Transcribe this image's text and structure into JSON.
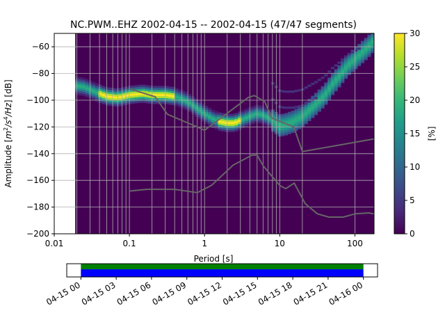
{
  "chart_data": {
    "type": "heatmap",
    "title": "NC.PWM..EHZ   2002-04-15 -- 2002-04-15  (47/47 segments)",
    "xlabel": "Period [s]",
    "ylabel_main": "Amplitude [",
    "ylabel_unit": "m",
    "ylabel_sup1": "2",
    "ylabel_mid": "/s",
    "ylabel_sup2": "4",
    "ylabel_tail": "/Hz",
    "ylabel_end": "] [dB]",
    "x_scale": "log",
    "xlim": [
      0.01,
      180
    ],
    "ylim": [
      -200,
      -50
    ],
    "grid": true,
    "x_ticks": [
      {
        "value": 0.01,
        "label": "0.01"
      },
      {
        "value": 0.1,
        "label": "0.1"
      },
      {
        "value": 1,
        "label": "1"
      },
      {
        "value": 10,
        "label": "10"
      },
      {
        "value": 100,
        "label": "100"
      }
    ],
    "y_ticks": [
      {
        "value": -60,
        "label": "−60"
      },
      {
        "value": -80,
        "label": "−80"
      },
      {
        "value": -100,
        "label": "−100"
      },
      {
        "value": -120,
        "label": "−120"
      },
      {
        "value": -140,
        "label": "−140"
      },
      {
        "value": -160,
        "label": "−160"
      },
      {
        "value": -180,
        "label": "−180"
      },
      {
        "value": -200,
        "label": "−200"
      }
    ],
    "data_extent_period": [
      0.019,
      180
    ],
    "background_color": "#440154",
    "ppsd_mode_curve": {
      "period": [
        0.019,
        0.025,
        0.03,
        0.04,
        0.05,
        0.07,
        0.1,
        0.15,
        0.2,
        0.3,
        0.4,
        0.6,
        0.8,
        1,
        1.3,
        1.6,
        2,
        2.5,
        3,
        4,
        5,
        6,
        7,
        8,
        9,
        10,
        12,
        15,
        20,
        25,
        30,
        40,
        50,
        60,
        70,
        80,
        100,
        120,
        150,
        180
      ],
      "db": [
        -89,
        -90,
        -92,
        -95,
        -97,
        -98,
        -96,
        -95,
        -96,
        -96,
        -97,
        -101,
        -106,
        -110,
        -114,
        -116,
        -117,
        -117,
        -115,
        -112,
        -110,
        -111,
        -113,
        -115,
        -117,
        -119,
        -118,
        -116,
        -112,
        -107,
        -103,
        -96,
        -88,
        -83,
        -78,
        -74,
        -69,
        -65,
        -60,
        -55
      ],
      "spread_db": 3
    },
    "colorbar": {
      "label": "[%]",
      "min": 0,
      "max": 30,
      "ticks": [
        {
          "value": 0,
          "label": "0"
        },
        {
          "value": 5,
          "label": "5"
        },
        {
          "value": 10,
          "label": "10"
        },
        {
          "value": 15,
          "label": "15"
        },
        {
          "value": 20,
          "label": "20"
        },
        {
          "value": 25,
          "label": "25"
        },
        {
          "value": 30,
          "label": "30"
        }
      ],
      "colormap": "viridis",
      "colors": [
        "#440154",
        "#482878",
        "#3e4989",
        "#31688e",
        "#26828e",
        "#1f9e89",
        "#35b779",
        "#6ece58",
        "#b5de2b",
        "#fde725"
      ]
    },
    "noise_models": {
      "color": "#666666",
      "high": {
        "period": [
          0.1,
          0.22,
          0.32,
          0.8,
          1,
          3.8,
          4.6,
          6.3,
          7.9,
          15.4,
          20,
          354.8
        ],
        "db": [
          -91.5,
          -97.4,
          -110.5,
          -120,
          -122.5,
          -98,
          -96.5,
          -101,
          -113.5,
          -120,
          -138.5,
          -126
        ]
      },
      "low": {
        "period": [
          0.1,
          0.17,
          0.4,
          0.8,
          1.24,
          2.4,
          4.3,
          5,
          6,
          10,
          12,
          15.6,
          21.9,
          31.6,
          45,
          70,
          101,
          154,
          328
        ],
        "db": [
          -168,
          -166.7,
          -166.7,
          -169.2,
          -163.7,
          -148.6,
          -141.1,
          -141.1,
          -149,
          -163.8,
          -166.2,
          -162.1,
          -177.5,
          -185,
          -187.5,
          -187.5,
          -185,
          -184.4,
          -187.5
        ]
      }
    },
    "grid_periods": [
      0.02,
      0.03,
      0.04,
      0.05,
      0.06,
      0.07,
      0.08,
      0.09,
      0.1,
      0.2,
      0.3,
      0.4,
      0.5,
      0.6,
      0.7,
      0.8,
      0.9,
      1,
      2,
      3,
      4,
      5,
      6,
      7,
      8,
      9,
      10,
      20,
      100
    ],
    "coverage": {
      "start_label": "04-15 00",
      "time_ticks": [
        {
          "hours": 0,
          "label": "04-15 00"
        },
        {
          "hours": 3,
          "label": "04-15 03"
        },
        {
          "hours": 6,
          "label": "04-15 06"
        },
        {
          "hours": 9,
          "label": "04-15 09"
        },
        {
          "hours": 12,
          "label": "04-15 12"
        },
        {
          "hours": 15,
          "label": "04-15 15"
        },
        {
          "hours": 18,
          "label": "04-15 18"
        },
        {
          "hours": 21,
          "label": "04-15 21"
        },
        {
          "hours": 24,
          "label": "04-16 00"
        }
      ],
      "axis_range_hours": [
        -1.2,
        25.2
      ],
      "segments": [
        {
          "start_hours": 0,
          "end_hours": 24
        }
      ],
      "colors": {
        "green": "#008000",
        "blue": "#0000ff"
      }
    }
  }
}
